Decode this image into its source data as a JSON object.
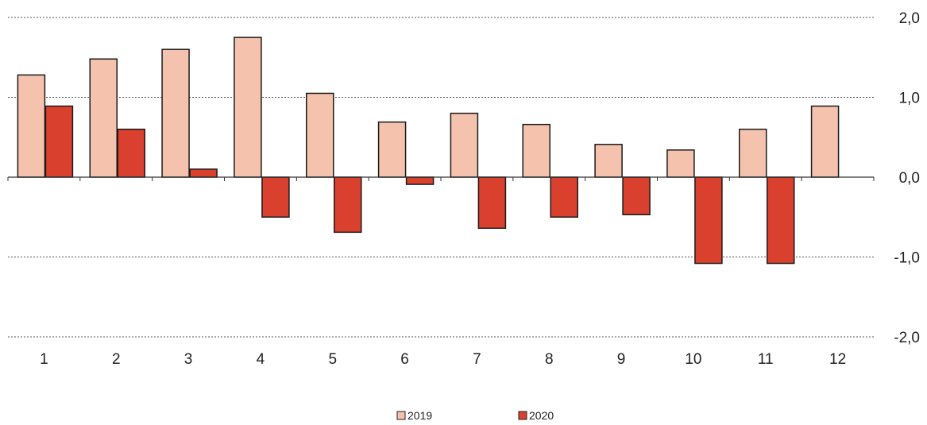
{
  "chart_data": {
    "type": "bar",
    "categories": [
      "1",
      "2",
      "3",
      "4",
      "5",
      "6",
      "7",
      "8",
      "9",
      "10",
      "11",
      "12"
    ],
    "series": [
      {
        "name": "2019",
        "color": "#f4c2ad",
        "values": [
          1.28,
          1.48,
          1.6,
          1.75,
          1.05,
          0.69,
          0.8,
          0.66,
          0.41,
          0.34,
          0.6,
          0.89
        ]
      },
      {
        "name": "2020",
        "color": "#d9402e",
        "values": [
          0.89,
          0.6,
          0.1,
          -0.5,
          -0.69,
          -0.09,
          -0.64,
          -0.5,
          -0.47,
          -1.08,
          -1.08,
          null
        ]
      }
    ],
    "y_ticks": [
      "2,0",
      "1,0",
      "0,0",
      "-1,0",
      "-2,0"
    ],
    "y_tick_values": [
      2,
      1,
      0,
      -1,
      -2
    ],
    "ylim": [
      -2,
      2
    ],
    "y_axis_side": "right",
    "grid": "dashed horizontal",
    "legend_position": "bottom-center"
  }
}
